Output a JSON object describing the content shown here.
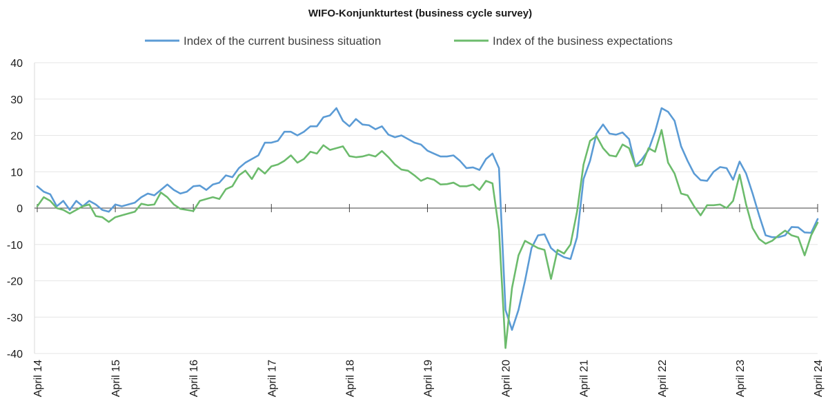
{
  "chart_data": {
    "type": "line",
    "title": "WIFO-Konjunkturtest (business cycle survey)",
    "xlabel": "",
    "ylabel": "",
    "ylim": [
      -40,
      40
    ],
    "yticks": [
      40,
      30,
      20,
      10,
      0,
      -10,
      -20,
      -30,
      -40
    ],
    "x_start": "April 14",
    "x_end": "April 24",
    "x_ticks": [
      {
        "label": "April 14",
        "index": 0
      },
      {
        "label": "April 15",
        "index": 12
      },
      {
        "label": "April 16",
        "index": 24
      },
      {
        "label": "April 17",
        "index": 36
      },
      {
        "label": "April 18",
        "index": 48
      },
      {
        "label": "April 19",
        "index": 60
      },
      {
        "label": "April 20",
        "index": 72
      },
      {
        "label": "April 21",
        "index": 84
      },
      {
        "label": "April 22",
        "index": 96
      },
      {
        "label": "April 23",
        "index": 108
      },
      {
        "label": "April 24",
        "index": 120
      }
    ],
    "grid": true,
    "legend_position": "top",
    "series": [
      {
        "name": "Index of the current business situation",
        "color": "#5b9bd5",
        "values": [
          6,
          4.5,
          3.8,
          0.5,
          2,
          -0.5,
          2,
          0.5,
          2,
          1,
          -0.5,
          -1,
          1,
          0.5,
          1,
          1.5,
          3,
          4,
          3.5,
          5,
          6.5,
          5,
          4,
          4.5,
          6,
          6.2,
          5,
          6.5,
          7,
          9,
          8.5,
          11,
          12.5,
          13.5,
          14.5,
          18,
          18,
          18.5,
          21,
          21,
          20,
          21,
          22.5,
          22.5,
          25,
          25.5,
          27.5,
          24,
          22.5,
          24.5,
          23,
          22.8,
          21.7,
          22.5,
          20.2,
          19.5,
          20,
          19,
          18,
          17.5,
          15.8,
          15,
          14.2,
          14.2,
          14.5,
          13,
          11,
          11.2,
          10.5,
          13.5,
          15,
          11,
          -28,
          -33.5,
          -28,
          -20,
          -11,
          -7.5,
          -7.2,
          -11,
          -12.5,
          -13.5,
          -14,
          -8,
          8,
          13,
          20.5,
          23,
          20.5,
          20.2,
          20.8,
          19,
          11.5,
          13.5,
          16,
          21,
          27.5,
          26.5,
          24,
          17,
          13,
          9.5,
          7.7,
          7.5,
          10,
          11.3,
          11,
          7.8,
          12.8,
          9.5,
          4,
          -2,
          -7.5,
          -8,
          -8,
          -7.5,
          -5.2,
          -5.3,
          -6.7,
          -6.8,
          -3
        ]
      },
      {
        "name": "Index of the business expectations",
        "color": "#6cbb6c",
        "values": [
          0.5,
          3,
          2,
          0,
          -0.5,
          -1.5,
          -0.5,
          0.5,
          1,
          -2.2,
          -2.5,
          -3.8,
          -2.5,
          -2,
          -1.5,
          -1,
          1.2,
          0.8,
          1,
          4.3,
          3,
          1,
          -0.2,
          -0.5,
          -0.8,
          2,
          2.5,
          3,
          2.5,
          5.2,
          6,
          9,
          10.3,
          8,
          11,
          9.5,
          11.5,
          12,
          13,
          14.5,
          12.5,
          13.5,
          15.5,
          15,
          17.3,
          16,
          16.5,
          17,
          14.3,
          14,
          14.2,
          14.7,
          14.2,
          15.7,
          14,
          12,
          10.6,
          10.3,
          9,
          7.5,
          8.3,
          7.8,
          6.5,
          6.6,
          7,
          6,
          6,
          6.5,
          5,
          7.5,
          6.8,
          -6,
          -38.5,
          -22,
          -13,
          -9,
          -10,
          -11,
          -11.5,
          -19.5,
          -11.5,
          -12.5,
          -10,
          -1,
          12,
          18.5,
          19.8,
          16.5,
          14.5,
          14.2,
          17.5,
          16.5,
          11.5,
          12,
          16.5,
          15.5,
          21.5,
          12.5,
          9.5,
          4,
          3.5,
          0.5,
          -2,
          0.8,
          0.8,
          1,
          0,
          2,
          9.2,
          1,
          -5.5,
          -8.5,
          -9.8,
          -9,
          -7.5,
          -6.2,
          -7.5,
          -8,
          -13,
          -7.5,
          -4
        ]
      }
    ]
  }
}
